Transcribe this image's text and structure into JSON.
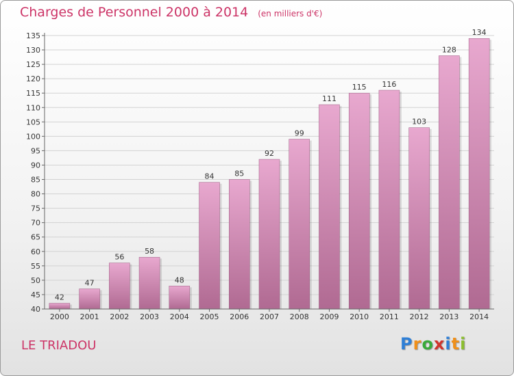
{
  "header": {
    "title": "Charges de Personnel 2000 à 2014",
    "unit": "(en milliers d'€)"
  },
  "footer": {
    "place": "LE TRIADOU",
    "logo": "Proxiti"
  },
  "colors": {
    "title": "#cc3366",
    "bar_top": "#e8a8cf",
    "bar_bottom": "#b06a92"
  },
  "chart_data": {
    "type": "bar",
    "title": "Charges de Personnel 2000 à 2014",
    "subtitle": "(en milliers d'€)",
    "categories": [
      "2000",
      "2001",
      "2002",
      "2003",
      "2004",
      "2005",
      "2006",
      "2007",
      "2008",
      "2009",
      "2010",
      "2011",
      "2012",
      "2013",
      "2014"
    ],
    "values": [
      42,
      47,
      56,
      58,
      48,
      84,
      85,
      92,
      99,
      111,
      115,
      116,
      103,
      128,
      134
    ],
    "data_labels": [
      "42",
      "47",
      "56",
      "58",
      "48",
      "84",
      "85",
      "92",
      "99",
      "111",
      "115",
      "116",
      "103",
      "128",
      "134"
    ],
    "yticks": [
      "40",
      "45",
      "50",
      "55",
      "60",
      "65",
      "70",
      "75",
      "80",
      "85",
      "90",
      "95",
      "100",
      "105",
      "110",
      "115",
      "120",
      "125",
      "130",
      "135"
    ],
    "ylim": [
      40,
      135
    ],
    "grid": true,
    "legend": "none"
  }
}
